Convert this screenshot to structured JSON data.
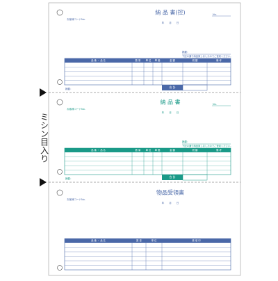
{
  "perforation_label": "ミシン目入り",
  "sections": [
    {
      "title": "納 品 書(控)",
      "customer_code": "お客様コードNo.",
      "number": "No.",
      "date": "年　　月　　日",
      "remarks_label": "摘要：",
      "message": "下記の通り納品致しましたのでご査収ください。",
      "headers": [
        "品 番 ・ 品 名",
        "数 量",
        "単 位",
        "単 価",
        "金 額",
        "税 額",
        "備 考"
      ],
      "total": "合 計",
      "footer_label": "摘要：",
      "color": "#4a68a8"
    },
    {
      "title": "納 品 書",
      "customer_code": "お客様コードNo.",
      "number": "No.",
      "date": "年　　月　　日",
      "remarks_label": "摘要：",
      "message": "下記の通り納品致しましたのでご査収ください。",
      "headers": [
        "品 番 ・ 品 名",
        "数 量",
        "単 位",
        "単 価",
        "金 額",
        "税 額",
        "備 考"
      ],
      "total": "合 計",
      "footer_label": "摘要：",
      "color": "#1a9a88"
    },
    {
      "title": "物品受領書",
      "customer_code": "お客様コードNo.",
      "date": "年　　月　　日",
      "headers": [
        "品 番 ・ 品 名",
        "数 量",
        "単 位",
        "受 領 印"
      ],
      "color": "#4a68a8"
    }
  ]
}
